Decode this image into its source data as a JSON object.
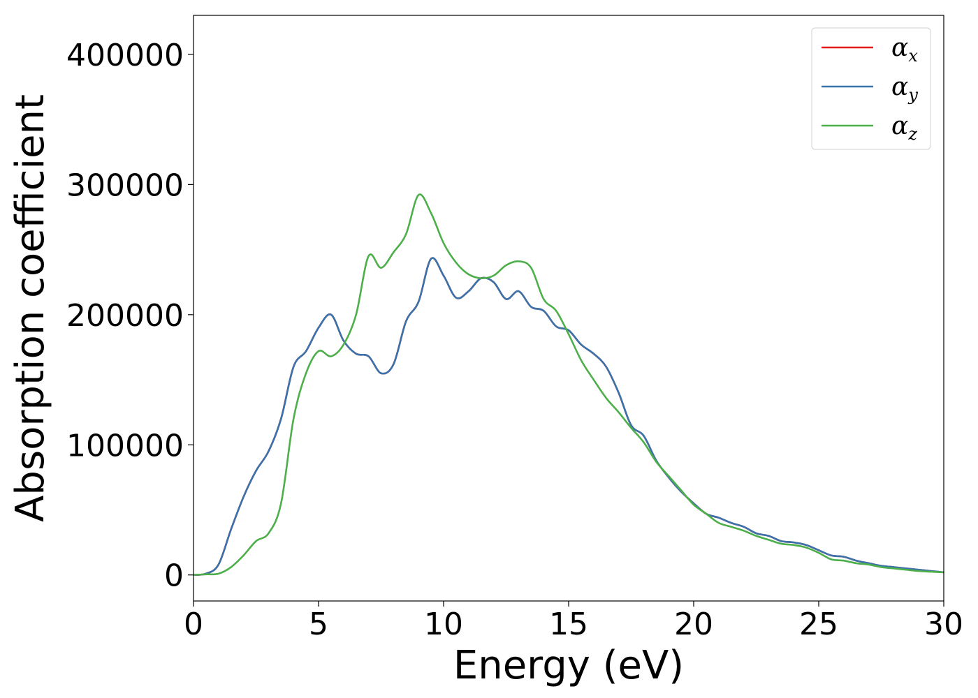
{
  "chart_data": {
    "type": "line",
    "xlabel": "Energy (eV)",
    "ylabel": "Absorption coefficient",
    "xlim": [
      0,
      30
    ],
    "ylim": [
      -20000,
      430000
    ],
    "xticks": [
      0,
      5,
      10,
      15,
      20,
      25,
      30
    ],
    "xtick_labels": [
      "0",
      "5",
      "10",
      "15",
      "20",
      "25",
      "30"
    ],
    "yticks": [
      0,
      100000,
      200000,
      300000,
      400000
    ],
    "ytick_labels": [
      "0",
      "100000",
      "200000",
      "300000",
      "400000"
    ],
    "grid": false,
    "legend_position": "top-right",
    "x": [
      0,
      0.5,
      1,
      1.5,
      2,
      2.5,
      3,
      3.5,
      4,
      4.5,
      5,
      5.5,
      6,
      6.5,
      7,
      7.5,
      8,
      8.5,
      9,
      9.5,
      10,
      10.5,
      11,
      11.5,
      12,
      12.5,
      13,
      13.5,
      14,
      14.5,
      15,
      15.5,
      16,
      16.5,
      17,
      17.5,
      18,
      18.5,
      19,
      19.5,
      20,
      20.5,
      21,
      21.5,
      22,
      22.5,
      23,
      23.5,
      24,
      24.5,
      25,
      25.5,
      26,
      26.5,
      27,
      27.5,
      28,
      28.5,
      29,
      29.5,
      30
    ],
    "series": [
      {
        "name": "α",
        "subscript": "x",
        "color": "#e41a1c",
        "values": [
          0,
          1000,
          8000,
          35000,
          60000,
          80000,
          95000,
          120000,
          160000,
          172000,
          190000,
          200000,
          180000,
          170000,
          168000,
          155000,
          162000,
          195000,
          210000,
          243000,
          230000,
          213000,
          218000,
          228000,
          225000,
          212000,
          218000,
          206000,
          203000,
          191000,
          188000,
          177000,
          170000,
          160000,
          140000,
          115000,
          107000,
          88000,
          75000,
          64000,
          55000,
          47000,
          44000,
          40000,
          37000,
          32000,
          30000,
          26000,
          25000,
          23000,
          19000,
          15000,
          14000,
          11000,
          9000,
          7000,
          6000,
          5000,
          4000,
          3000,
          2000
        ]
      },
      {
        "name": "α",
        "subscript": "y",
        "color": "#3a73ab",
        "values": [
          0,
          1000,
          8000,
          35000,
          60000,
          80000,
          95000,
          120000,
          160000,
          172000,
          190000,
          200000,
          180000,
          170000,
          168000,
          155000,
          162000,
          195000,
          210000,
          243000,
          230000,
          213000,
          218000,
          228000,
          225000,
          212000,
          218000,
          206000,
          203000,
          191000,
          188000,
          177000,
          170000,
          160000,
          140000,
          115000,
          107000,
          88000,
          75000,
          64000,
          55000,
          47000,
          44000,
          40000,
          37000,
          32000,
          30000,
          26000,
          25000,
          23000,
          19000,
          15000,
          14000,
          11000,
          9000,
          7000,
          6000,
          5000,
          4000,
          3000,
          2000
        ]
      },
      {
        "name": "α",
        "subscript": "z",
        "color": "#4daf4a",
        "values": [
          0,
          500,
          1000,
          6000,
          15000,
          26000,
          32000,
          55000,
          120000,
          155000,
          172000,
          168000,
          177000,
          200000,
          245000,
          236000,
          248000,
          262000,
          292000,
          278000,
          255000,
          240000,
          231000,
          228000,
          230000,
          238000,
          241000,
          236000,
          212000,
          203000,
          185000,
          165000,
          150000,
          136000,
          125000,
          113000,
          102000,
          87000,
          76000,
          65000,
          54000,
          47000,
          40000,
          37000,
          34000,
          30000,
          27000,
          24000,
          23000,
          21000,
          17000,
          12000,
          11000,
          9000,
          8000,
          6000,
          5000,
          4000,
          3000,
          2500,
          2000
        ]
      }
    ]
  }
}
